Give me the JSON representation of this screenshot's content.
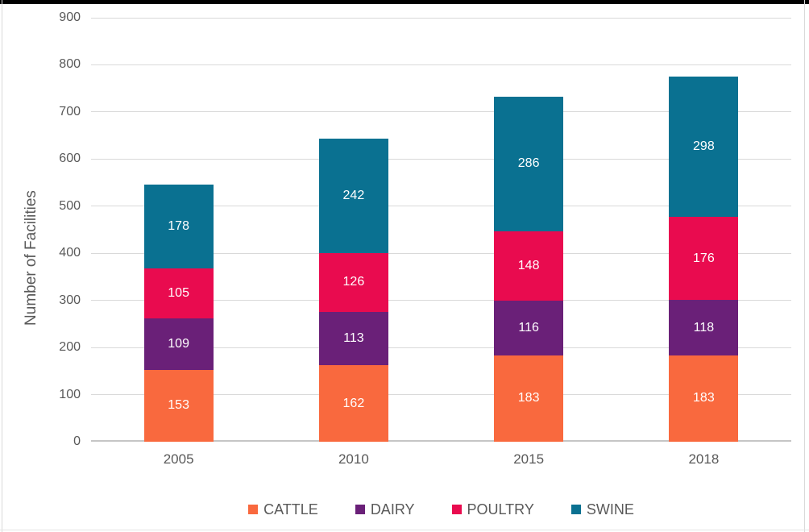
{
  "frame": {
    "top_border_color": "#000000",
    "edge_line_color": "#d9d9d9"
  },
  "chart_data": {
    "type": "bar",
    "stacked": true,
    "title": "",
    "xlabel": "",
    "ylabel": "Number of Facilities",
    "ylim": [
      0,
      900
    ],
    "ytick_step": 100,
    "ytick_labels": [
      "0",
      "100",
      "200",
      "300",
      "400",
      "500",
      "600",
      "700",
      "800",
      "900"
    ],
    "grid": true,
    "legend_position": "bottom",
    "categories": [
      "2005",
      "2010",
      "2015",
      "2018"
    ],
    "series": [
      {
        "name": "CATTLE",
        "color": "#F9693E",
        "values": [
          153,
          162,
          183,
          183
        ]
      },
      {
        "name": "DAIRY",
        "color": "#6A2078",
        "values": [
          109,
          113,
          116,
          118
        ]
      },
      {
        "name": "POULTRY",
        "color": "#E90B4F",
        "values": [
          105,
          126,
          148,
          176
        ]
      },
      {
        "name": "SWINE",
        "color": "#0A7191",
        "values": [
          178,
          242,
          286,
          298
        ]
      }
    ],
    "data_labels": true,
    "data_label_color": "#ffffff",
    "axis_text_color": "#595959",
    "gridline_color": "#d9d9d9"
  }
}
